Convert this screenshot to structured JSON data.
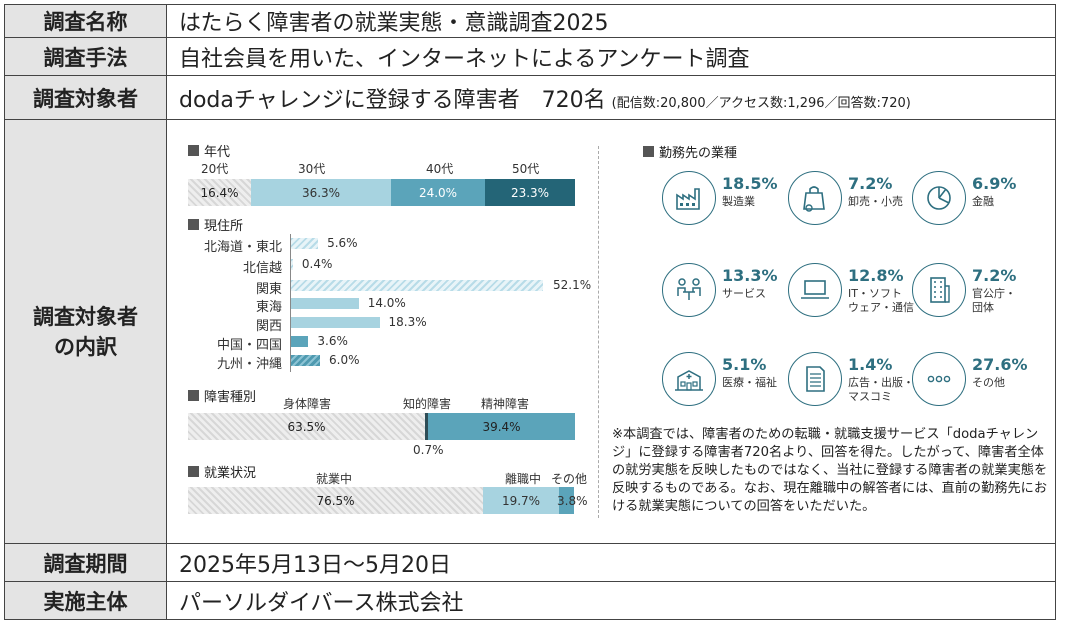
{
  "rows": {
    "survey_name": {
      "label": "調査名称",
      "value": "はたらく障害者の就業実態・意識調査2025"
    },
    "method": {
      "label": "調査手法",
      "value": "自社会員を用いた、インターネットによるアンケート調査"
    },
    "target": {
      "label": "調査対象者",
      "value": "dodaチャレンジに登録する障害者　720名",
      "note": "(配信数:20,800／アクセス数:1,296／回答数:720)"
    },
    "breakdown": {
      "label_line1": "調査対象者",
      "label_line2": "の内訳"
    },
    "period": {
      "label": "調査期間",
      "value": "2025年5月13日〜5月20日"
    },
    "organizer": {
      "label": "実施主体",
      "value": "パーソルダイバース株式会社"
    }
  },
  "age": {
    "title": "年代",
    "categories": [
      "20代",
      "30代",
      "40代",
      "50代"
    ],
    "values": [
      "16.4%",
      "36.3%",
      "24.0%",
      "23.3%"
    ],
    "colors": [
      "#e0e0e0",
      "#a7d3e0",
      "#5ba4ba",
      "#246577"
    ]
  },
  "residence": {
    "title": "現住所",
    "items": [
      {
        "label": "北海道・東北",
        "value": "5.6%",
        "pct": 5.6
      },
      {
        "label": "北信越",
        "value": "0.4%",
        "pct": 0.4
      },
      {
        "label": "関東",
        "value": "52.1%",
        "pct": 52.1
      },
      {
        "label": "東海",
        "value": "14.0%",
        "pct": 14.0
      },
      {
        "label": "関西",
        "value": "18.3%",
        "pct": 18.3
      },
      {
        "label": "中国・四国",
        "value": "3.6%",
        "pct": 3.6
      },
      {
        "label": "九州・沖縄",
        "value": "6.0%",
        "pct": 6.0
      }
    ]
  },
  "disability": {
    "title": "障害種別",
    "labels": [
      "身体障害",
      "知的障害",
      "精神障害"
    ],
    "values": [
      "63.5%",
      "0.7%",
      "39.4%"
    ]
  },
  "employment": {
    "title": "就業状況",
    "labels": [
      "就業中",
      "離職中",
      "その他"
    ],
    "values": [
      "76.5%",
      "19.7%",
      "3.8%"
    ]
  },
  "industry": {
    "title": "勤務先の業種",
    "items": [
      {
        "pct": "18.5%",
        "name": "製造業",
        "icon": "factory-icon"
      },
      {
        "pct": "7.2%",
        "name": "卸売・小売",
        "icon": "shopping-bag-icon"
      },
      {
        "pct": "6.9%",
        "name": "金融",
        "icon": "pie-chart-icon"
      },
      {
        "pct": "13.3%",
        "name": "サービス",
        "icon": "people-table-icon"
      },
      {
        "pct": "12.8%",
        "name": "IT・ソフト\nウェア・通信",
        "icon": "laptop-icon"
      },
      {
        "pct": "7.2%",
        "name": "官公庁・\n団体",
        "icon": "building-icon"
      },
      {
        "pct": "5.1%",
        "name": "医療・福祉",
        "icon": "hospital-icon"
      },
      {
        "pct": "1.4%",
        "name": "広告・出版・\nマスコミ",
        "icon": "document-icon"
      },
      {
        "pct": "27.6%",
        "name": "その他",
        "icon": "dots-icon"
      }
    ]
  },
  "note": "※本調査では、障害者のための転職・就職支援サービス「dodaチャレンジ」に登録する障害者720名より、回答を得た。したがって、障害者全体の就労実態を反映したものではなく、当社に登録する障害者の就業実態を反映するものである。なお、現在離職中の解答者には、直前の勤務先における就業実態についての回答をいただいた。"
}
